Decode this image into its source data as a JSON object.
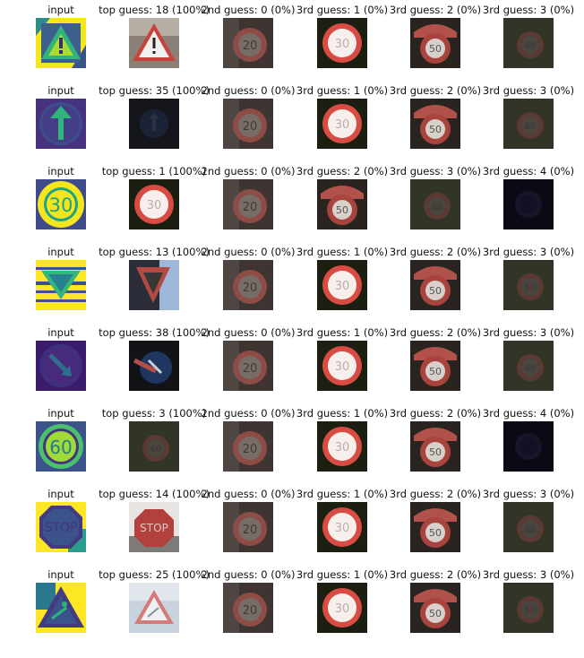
{
  "rows": [
    {
      "cells": [
        {
          "title": "input",
          "kind": "warn-input"
        },
        {
          "title": "top guess: 18 (100%)",
          "kind": "warn-photo"
        },
        {
          "title": "2nd guess: 0 (0%)",
          "kind": "speed20"
        },
        {
          "title": "3rd guess: 1 (0%)",
          "kind": "speed30"
        },
        {
          "title": "3rd guess: 2 (0%)",
          "kind": "speed50"
        },
        {
          "title": "3rd guess: 3 (0%)",
          "kind": "speed60"
        }
      ]
    },
    {
      "cells": [
        {
          "title": "input",
          "kind": "ahead-input"
        },
        {
          "title": "top guess: 35 (100%)",
          "kind": "ahead-photo"
        },
        {
          "title": "2nd guess: 0 (0%)",
          "kind": "speed20"
        },
        {
          "title": "3rd guess: 1 (0%)",
          "kind": "speed30"
        },
        {
          "title": "3rd guess: 2 (0%)",
          "kind": "speed50"
        },
        {
          "title": "3rd guess: 3 (0%)",
          "kind": "speed60"
        }
      ]
    },
    {
      "cells": [
        {
          "title": "input",
          "kind": "s30-input"
        },
        {
          "title": "top guess: 1 (100%)",
          "kind": "speed30"
        },
        {
          "title": "2nd guess: 0 (0%)",
          "kind": "speed20"
        },
        {
          "title": "3rd guess: 2 (0%)",
          "kind": "speed50"
        },
        {
          "title": "3rd guess: 3 (0%)",
          "kind": "speed60"
        },
        {
          "title": "3rd guess: 4 (0%)",
          "kind": "speed70"
        }
      ]
    },
    {
      "cells": [
        {
          "title": "input",
          "kind": "yield-input"
        },
        {
          "title": "top guess: 13 (100%)",
          "kind": "yield-photo"
        },
        {
          "title": "2nd guess: 0 (0%)",
          "kind": "speed20"
        },
        {
          "title": "3rd guess: 1 (0%)",
          "kind": "speed30"
        },
        {
          "title": "3rd guess: 2 (0%)",
          "kind": "speed50"
        },
        {
          "title": "3rd guess: 3 (0%)",
          "kind": "speed60"
        }
      ]
    },
    {
      "cells": [
        {
          "title": "input",
          "kind": "keep-input"
        },
        {
          "title": "top guess: 38 (100%)",
          "kind": "keep-photo"
        },
        {
          "title": "2nd guess: 0 (0%)",
          "kind": "speed20"
        },
        {
          "title": "3rd guess: 1 (0%)",
          "kind": "speed30"
        },
        {
          "title": "3rd guess: 2 (0%)",
          "kind": "speed50"
        },
        {
          "title": "3rd guess: 3 (0%)",
          "kind": "speed60"
        }
      ]
    },
    {
      "cells": [
        {
          "title": "input",
          "kind": "s60-input"
        },
        {
          "title": "top guess: 3 (100%)",
          "kind": "speed60"
        },
        {
          "title": "2nd guess: 0 (0%)",
          "kind": "speed20"
        },
        {
          "title": "3rd guess: 1 (0%)",
          "kind": "speed30"
        },
        {
          "title": "3rd guess: 2 (0%)",
          "kind": "speed50"
        },
        {
          "title": "3rd guess: 4 (0%)",
          "kind": "speed70"
        }
      ]
    },
    {
      "cells": [
        {
          "title": "input",
          "kind": "stop-input"
        },
        {
          "title": "top guess: 14 (100%)",
          "kind": "stop-photo"
        },
        {
          "title": "2nd guess: 0 (0%)",
          "kind": "speed20"
        },
        {
          "title": "3rd guess: 1 (0%)",
          "kind": "speed30"
        },
        {
          "title": "3rd guess: 2 (0%)",
          "kind": "speed50"
        },
        {
          "title": "3rd guess: 3 (0%)",
          "kind": "speed60"
        }
      ]
    },
    {
      "cells": [
        {
          "title": "input",
          "kind": "roadwork-input"
        },
        {
          "title": "top guess: 25 (100%)",
          "kind": "roadwork-photo"
        },
        {
          "title": "2nd guess: 0 (0%)",
          "kind": "speed20"
        },
        {
          "title": "3rd guess: 1 (0%)",
          "kind": "speed30"
        },
        {
          "title": "3rd guess: 2 (0%)",
          "kind": "speed50"
        },
        {
          "title": "3rd guess: 3 (0%)",
          "kind": "speed60"
        }
      ]
    }
  ]
}
